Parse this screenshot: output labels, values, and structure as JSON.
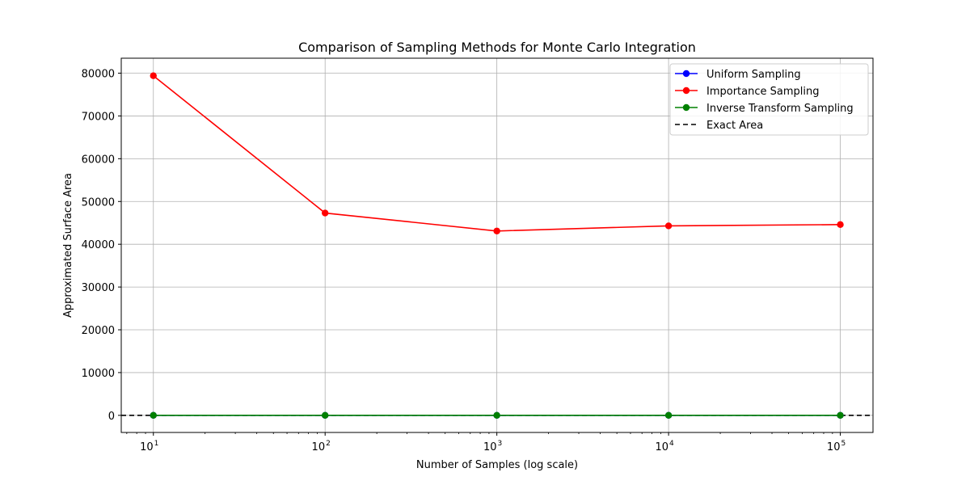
{
  "chart_data": {
    "type": "line",
    "title": "Comparison of Sampling Methods for Monte Carlo Integration",
    "xlabel": "Number of Samples (log scale)",
    "ylabel": "Approximated Surface Area",
    "x_scale": "log",
    "x": [
      10,
      100,
      1000,
      10000,
      100000
    ],
    "x_tick_labels": [
      {
        "base": "10",
        "exp": "1"
      },
      {
        "base": "10",
        "exp": "2"
      },
      {
        "base": "10",
        "exp": "3"
      },
      {
        "base": "10",
        "exp": "4"
      },
      {
        "base": "10",
        "exp": "5"
      }
    ],
    "xlim": [
      6.5,
      155000
    ],
    "ylim": [
      -4000,
      83500
    ],
    "y_ticks": [
      0,
      10000,
      20000,
      30000,
      40000,
      50000,
      60000,
      70000,
      80000
    ],
    "grid": true,
    "legend_position": "top-right",
    "series": [
      {
        "name": "Uniform Sampling",
        "color": "#0000ff",
        "style": "solid-marker",
        "values": [
          5,
          5,
          5,
          5,
          5
        ]
      },
      {
        "name": "Importance Sampling",
        "color": "#ff0000",
        "style": "solid-marker",
        "values": [
          79400,
          47300,
          43100,
          44300,
          44600
        ]
      },
      {
        "name": "Inverse Transform Sampling",
        "color": "#008000",
        "style": "solid-marker",
        "values": [
          5,
          5,
          5,
          5,
          5
        ]
      }
    ],
    "reference_lines": [
      {
        "name": "Exact Area",
        "color": "#000000",
        "style": "dashed",
        "value": 5
      }
    ]
  }
}
